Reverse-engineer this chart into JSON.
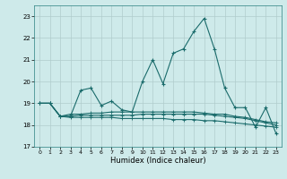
{
  "xlabel": "Humidex (Indice chaleur)",
  "background_color": "#ceeaea",
  "grid_color": "#b0cccc",
  "line_color": "#1a6b6b",
  "x": [
    0,
    1,
    2,
    3,
    4,
    5,
    6,
    7,
    8,
    9,
    10,
    11,
    12,
    13,
    14,
    15,
    16,
    17,
    18,
    19,
    20,
    21,
    22,
    23
  ],
  "series1": [
    19.0,
    19.0,
    18.4,
    18.4,
    19.6,
    19.7,
    18.9,
    19.1,
    18.7,
    18.6,
    20.0,
    21.0,
    19.9,
    21.3,
    21.5,
    22.3,
    22.9,
    21.5,
    19.7,
    18.8,
    18.8,
    17.9,
    18.8,
    17.6
  ],
  "series2": [
    19.0,
    19.0,
    18.4,
    18.35,
    18.35,
    18.35,
    18.35,
    18.35,
    18.3,
    18.3,
    18.3,
    18.3,
    18.3,
    18.25,
    18.25,
    18.25,
    18.2,
    18.2,
    18.15,
    18.1,
    18.05,
    18.0,
    17.95,
    17.9
  ],
  "series3": [
    19.0,
    19.0,
    18.4,
    18.4,
    18.45,
    18.45,
    18.45,
    18.45,
    18.45,
    18.45,
    18.5,
    18.5,
    18.5,
    18.5,
    18.5,
    18.5,
    18.5,
    18.45,
    18.4,
    18.35,
    18.3,
    18.2,
    18.1,
    18.0
  ],
  "series4": [
    19.0,
    19.0,
    18.4,
    18.5,
    18.5,
    18.55,
    18.55,
    18.6,
    18.6,
    18.6,
    18.6,
    18.6,
    18.6,
    18.6,
    18.6,
    18.6,
    18.55,
    18.5,
    18.5,
    18.4,
    18.35,
    18.25,
    18.15,
    18.1
  ],
  "ylim": [
    17.0,
    23.5
  ],
  "xlim": [
    -0.5,
    23.5
  ],
  "yticks": [
    17,
    18,
    19,
    20,
    21,
    22,
    23
  ],
  "xticks": [
    0,
    1,
    2,
    3,
    4,
    5,
    6,
    7,
    8,
    9,
    10,
    11,
    12,
    13,
    14,
    15,
    16,
    17,
    18,
    19,
    20,
    21,
    22,
    23
  ]
}
